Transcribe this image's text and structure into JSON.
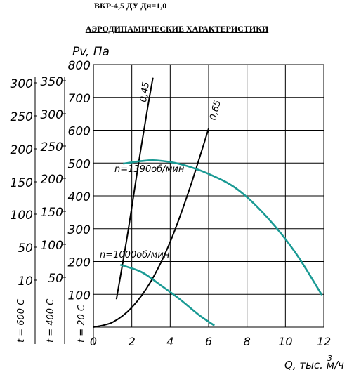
{
  "header": {
    "model": "ВКР-4,5 ДУ Дн=1,0"
  },
  "title": "АЭРОДИНАМИЧЕСКИЕ ХАРАКТЕРИСТИКИ",
  "chart_data": {
    "type": "line",
    "ylabel": "Pv, Па",
    "xlabel": "Q, тыс. м",
    "xlabel_sup": "3",
    "xlabel_unit": "/ч",
    "xlim": [
      0,
      12
    ],
    "ylim": [
      0,
      800
    ],
    "x_ticks": [
      "0",
      "2",
      "4",
      "6",
      "8",
      "10",
      "12"
    ],
    "y_ticks": [
      "100",
      "200",
      "300",
      "400",
      "500",
      "600",
      "700",
      "800"
    ],
    "grid": true,
    "temp_axes": [
      {
        "label": "t = 20 C",
        "ticks": []
      },
      {
        "label": "t = 400 C",
        "ticks": [
          "50",
          "100",
          "150",
          "200",
          "250",
          "300",
          "350"
        ]
      },
      {
        "label": "t = 600 C",
        "ticks": [
          "10",
          "50",
          "100",
          "150",
          "200",
          "250",
          "300"
        ]
      }
    ],
    "series": [
      {
        "name": "n=1390об/мин",
        "x": [
          1.55,
          2.5,
          3.3,
          4.5,
          6.0,
          7.5,
          9.0,
          10.5,
          11.9
        ],
        "y": [
          498,
          506,
          508,
          497,
          467,
          420,
          338,
          229,
          98
        ]
      },
      {
        "name": "n=1000об/мин",
        "x": [
          1.4,
          2.5,
          3.5,
          4.5,
          5.5,
          6.3
        ],
        "y": [
          190,
          168,
          128,
          85,
          37,
          5
        ]
      }
    ],
    "resistance_lines": [
      {
        "name": "0,45",
        "x": [
          1.2,
          1.8,
          2.3,
          2.8,
          3.1
        ],
        "y": [
          85,
          290,
          480,
          660,
          760
        ]
      },
      {
        "name": "0,65",
        "x": [
          0,
          1.0,
          2.0,
          3.0,
          4.0,
          5.0,
          6.0
        ],
        "y": [
          0,
          15,
          60,
          140,
          260,
          420,
          605
        ]
      }
    ]
  }
}
